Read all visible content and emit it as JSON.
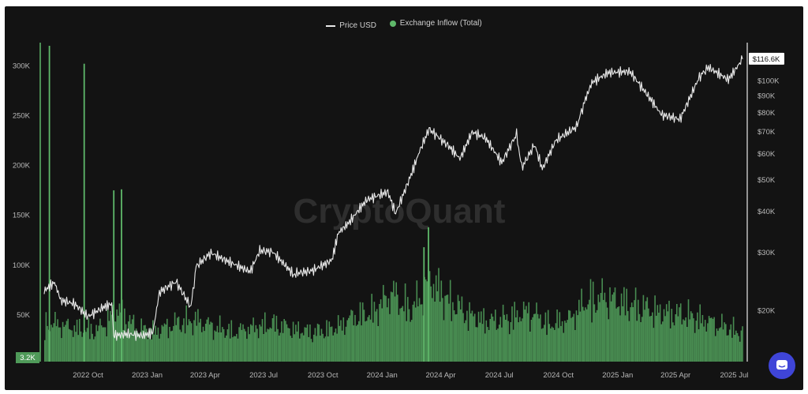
{
  "legend": {
    "price_label": "Price USD",
    "inflow_label": "Exchange Inflow (Total)"
  },
  "watermark": "CryptoQuant",
  "colors": {
    "background": "#131313",
    "price_line": "#e8e8e8",
    "inflow_bar": "#4f9a59",
    "inflow_bar_bright": "#5fb86a",
    "accent_button": "#3f45d8"
  },
  "icons": {
    "chat": "chat-bubble-icon"
  },
  "chart_data": {
    "type": "bar",
    "overlay_type": "line",
    "x_range": [
      "2022-07-25",
      "2025-07-14"
    ],
    "x_tick_labels": [
      "2022 Oct",
      "2023 Jan",
      "2023 Apr",
      "2023 Jul",
      "2023 Oct",
      "2024 Jan",
      "2024 Apr",
      "2024 Jul",
      "2024 Oct",
      "2025 Jan",
      "2025 Apr",
      "2025 Jul"
    ],
    "left_axis": {
      "name": "Exchange Inflow (Total)",
      "ticks": [
        50000,
        100000,
        150000,
        200000,
        250000,
        300000
      ],
      "tick_labels": [
        "50K",
        "100K",
        "150K",
        "200K",
        "250K",
        "300K"
      ],
      "ylim": [
        3200,
        320000
      ],
      "current_value_label": "3.2K"
    },
    "right_axis": {
      "name": "Price USD",
      "scale": "log",
      "ticks": [
        20000,
        30000,
        40000,
        50000,
        60000,
        70000,
        80000,
        90000,
        100000
      ],
      "tick_labels": [
        "$20K",
        "$30K",
        "$40K",
        "$50K",
        "$60K",
        "$70K",
        "$80K",
        "$90K",
        "$100K"
      ],
      "ylim": [
        14000,
        128000
      ],
      "current_value_label": "$116.6K"
    },
    "grid": false,
    "legend_position": "top-center",
    "series": [
      {
        "name": "Exchange Inflow (Total)",
        "kind": "bar",
        "x": [
          "2022-08",
          "2022-09",
          "2022-10",
          "2022-11",
          "2022-12",
          "2023-01",
          "2023-02",
          "2023-03",
          "2023-04",
          "2023-05",
          "2023-06",
          "2023-07",
          "2023-08",
          "2023-09",
          "2023-10",
          "2023-11",
          "2023-12",
          "2024-01",
          "2024-02",
          "2024-03",
          "2024-04",
          "2024-05",
          "2024-06",
          "2024-07",
          "2024-08",
          "2024-09",
          "2024-10",
          "2024-11",
          "2024-12",
          "2025-01",
          "2025-02",
          "2025-03",
          "2025-04",
          "2025-05",
          "2025-06",
          "2025-07"
        ],
        "values": [
          45000,
          40000,
          38000,
          62000,
          40000,
          38000,
          46000,
          50000,
          42000,
          36000,
          42000,
          45000,
          40000,
          36000,
          40000,
          52000,
          58000,
          80000,
          60000,
          95000,
          70000,
          55000,
          48000,
          52000,
          60000,
          45000,
          50000,
          72000,
          75000,
          68000,
          62000,
          58000,
          55000,
          50000,
          42000,
          35000
        ],
        "spikes": [
          {
            "x": "2022-08-01",
            "value": 320000
          },
          {
            "x": "2022-09-24",
            "value": 302000
          },
          {
            "x": "2022-11-09",
            "value": 175000
          },
          {
            "x": "2022-11-21",
            "value": 176000
          },
          {
            "x": "2024-03-05",
            "value": 118000
          },
          {
            "x": "2024-03-12",
            "value": 138000
          }
        ]
      },
      {
        "name": "Price USD",
        "kind": "line",
        "x": [
          "2022-07-25",
          "2022-08-10",
          "2022-08-20",
          "2022-09-10",
          "2022-10-01",
          "2022-10-25",
          "2022-11-07",
          "2022-11-10",
          "2022-12-01",
          "2022-12-25",
          "2023-01-10",
          "2023-01-20",
          "2023-02-15",
          "2023-03-10",
          "2023-03-18",
          "2023-04-10",
          "2023-05-01",
          "2023-06-10",
          "2023-06-25",
          "2023-07-15",
          "2023-08-15",
          "2023-08-20",
          "2023-09-15",
          "2023-10-15",
          "2023-10-25",
          "2023-11-10",
          "2023-12-08",
          "2024-01-10",
          "2024-01-22",
          "2024-02-15",
          "2024-02-28",
          "2024-03-14",
          "2024-04-15",
          "2024-05-01",
          "2024-05-20",
          "2024-06-10",
          "2024-07-05",
          "2024-07-28",
          "2024-08-05",
          "2024-08-25",
          "2024-09-06",
          "2024-09-27",
          "2024-10-29",
          "2024-11-12",
          "2024-11-22",
          "2024-12-17",
          "2025-01-20",
          "2025-02-25",
          "2025-03-10",
          "2025-04-08",
          "2025-05-08",
          "2025-05-22",
          "2025-06-22",
          "2025-07-14"
        ],
        "values": [
          23000,
          24400,
          21500,
          21000,
          19200,
          20500,
          21000,
          16800,
          17000,
          16800,
          17200,
          22800,
          24500,
          20500,
          27300,
          30000,
          28600,
          26300,
          30500,
          30200,
          26000,
          26000,
          26500,
          28500,
          34500,
          37000,
          43500,
          46000,
          39500,
          51800,
          61000,
          71500,
          63000,
          58000,
          70000,
          67000,
          56500,
          69000,
          54500,
          64000,
          54000,
          66000,
          72500,
          88000,
          99000,
          106000,
          107000,
          86000,
          79000,
          76500,
          103000,
          110000,
          101000,
          116600
        ]
      }
    ]
  }
}
